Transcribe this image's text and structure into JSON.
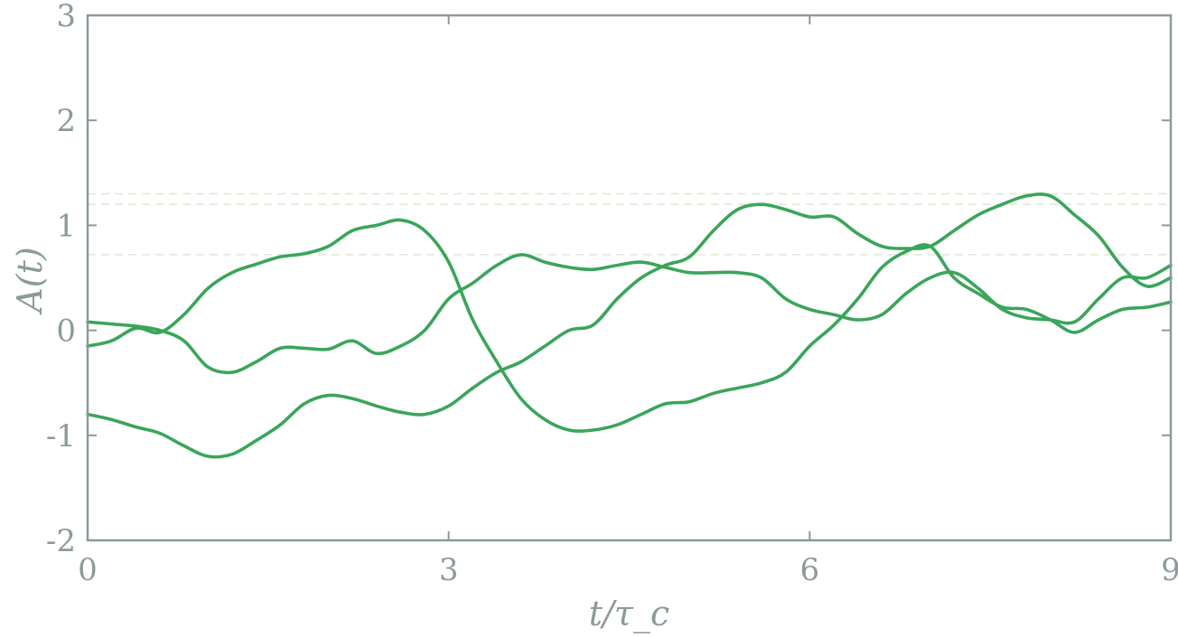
{
  "chart_data": {
    "type": "line",
    "xlabel": "t/τ_c",
    "ylabel": "A(t)",
    "xlim": [
      0,
      9
    ],
    "ylim": [
      -2,
      3
    ],
    "xticks": [
      0,
      3,
      6,
      9
    ],
    "xtick_labels": [
      "0",
      "3",
      "6",
      "9"
    ],
    "yticks": [
      -2,
      -1,
      0,
      1,
      2,
      3
    ],
    "ytick_labels": [
      "-2",
      "-1",
      "0",
      "1",
      "2",
      "3"
    ],
    "grid": false,
    "legend": "none",
    "colors": {
      "series": "#3aa55a",
      "reference": "#dfe8d4",
      "axis": "#8c9a99"
    },
    "reference_lines": [
      1.3,
      1.2,
      0.72
    ],
    "series": [
      {
        "x": [
          0,
          0.2,
          0.4,
          0.6,
          0.8,
          1.0,
          1.2,
          1.4,
          1.6,
          1.8,
          2.0,
          2.2,
          2.4,
          2.6,
          2.8,
          3.0,
          3.2,
          3.4,
          3.6,
          3.8,
          4.0,
          4.2,
          4.4,
          4.6,
          4.8,
          5.0,
          5.2,
          5.4,
          5.6,
          5.8,
          6.0,
          6.2,
          6.4,
          6.6,
          6.8,
          7.0,
          7.2,
          7.4,
          7.6,
          7.8,
          8.0,
          8.2,
          8.4,
          8.6,
          8.8,
          9.0
        ],
        "values": [
          0.08,
          0.06,
          0.04,
          0.0,
          -0.1,
          -0.35,
          -0.4,
          -0.3,
          -0.17,
          -0.17,
          -0.18,
          -0.1,
          -0.22,
          -0.15,
          0.0,
          0.3,
          0.45,
          0.62,
          0.72,
          0.65,
          0.6,
          0.58,
          0.62,
          0.65,
          0.6,
          0.55,
          0.55,
          0.55,
          0.5,
          0.3,
          0.2,
          0.15,
          0.1,
          0.15,
          0.35,
          0.5,
          0.55,
          0.4,
          0.2,
          0.12,
          0.1,
          0.08,
          0.3,
          0.5,
          0.5,
          0.62
        ]
      },
      {
        "x": [
          0,
          0.2,
          0.4,
          0.6,
          0.8,
          1.0,
          1.2,
          1.4,
          1.6,
          1.8,
          2.0,
          2.2,
          2.4,
          2.6,
          2.8,
          3.0,
          3.2,
          3.4,
          3.6,
          3.8,
          4.0,
          4.2,
          4.4,
          4.6,
          4.8,
          5.0,
          5.2,
          5.4,
          5.6,
          5.8,
          6.0,
          6.2,
          6.4,
          6.6,
          6.8,
          7.0,
          7.2,
          7.4,
          7.6,
          7.8,
          8.0,
          8.2,
          8.4,
          8.6,
          8.8,
          9.0
        ],
        "values": [
          -0.15,
          -0.1,
          0.02,
          -0.02,
          0.15,
          0.4,
          0.55,
          0.63,
          0.7,
          0.73,
          0.8,
          0.95,
          1.0,
          1.05,
          0.95,
          0.65,
          0.1,
          -0.3,
          -0.65,
          -0.85,
          -0.95,
          -0.95,
          -0.9,
          -0.8,
          -0.7,
          -0.68,
          -0.6,
          -0.55,
          -0.5,
          -0.4,
          -0.15,
          0.05,
          0.3,
          0.6,
          0.75,
          0.8,
          0.5,
          0.35,
          0.22,
          0.2,
          0.1,
          -0.02,
          0.1,
          0.2,
          0.22,
          0.27
        ]
      },
      {
        "x": [
          0,
          0.2,
          0.4,
          0.6,
          0.8,
          1.0,
          1.2,
          1.4,
          1.6,
          1.8,
          2.0,
          2.2,
          2.4,
          2.6,
          2.8,
          3.0,
          3.2,
          3.4,
          3.6,
          3.8,
          4.0,
          4.2,
          4.4,
          4.6,
          4.8,
          5.0,
          5.2,
          5.4,
          5.6,
          5.8,
          6.0,
          6.2,
          6.4,
          6.6,
          6.8,
          7.0,
          7.2,
          7.4,
          7.6,
          7.8,
          8.0,
          8.2,
          8.4,
          8.6,
          8.8,
          9.0
        ],
        "values": [
          -0.8,
          -0.85,
          -0.92,
          -0.98,
          -1.1,
          -1.2,
          -1.18,
          -1.05,
          -0.9,
          -0.7,
          -0.62,
          -0.65,
          -0.72,
          -0.78,
          -0.8,
          -0.72,
          -0.55,
          -0.4,
          -0.3,
          -0.15,
          0.0,
          0.05,
          0.3,
          0.5,
          0.62,
          0.7,
          0.95,
          1.15,
          1.2,
          1.15,
          1.08,
          1.08,
          0.92,
          0.8,
          0.78,
          0.8,
          0.95,
          1.1,
          1.2,
          1.28,
          1.28,
          1.1,
          0.9,
          0.6,
          0.42,
          0.5
        ]
      }
    ]
  }
}
